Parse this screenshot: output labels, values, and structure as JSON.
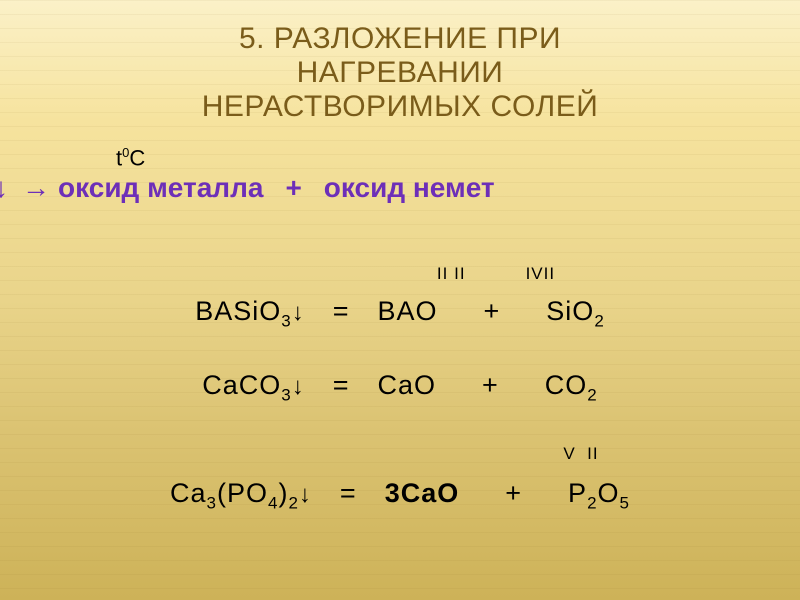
{
  "colors": {
    "title": "#7a5c1a",
    "scheme": "#6d2fb8",
    "body": "#000000",
    "bg_top": "#fbf1c8",
    "bg_bottom": "#cdb258"
  },
  "fontsize": {
    "title": 30,
    "scheme": 28,
    "equation": 27,
    "oxidation": 17,
    "temp": 22
  },
  "title": {
    "line1": "5. РАЗЛОЖЕНИЕ  ПРИ",
    "line2": "НАГРЕВАНИИ",
    "line3": "НЕРАСТВОРИМЫХ  СОЛЕЙ"
  },
  "temperature": {
    "t": "t",
    "deg": "0",
    "c": "C"
  },
  "scheme": {
    "down": "↓",
    "arrow": "→",
    "lhs": "оксид металла",
    "plus": "+",
    "rhs": "оксид немет"
  },
  "ox_a": {
    "a": "II",
    "b": "II",
    "c": "IV",
    "d": "II"
  },
  "ox_b": {
    "a": "V",
    "b": "II"
  },
  "eq1": {
    "l_base": "BASiO",
    "l_sub": "3",
    "l_arrow": "↓",
    "eq": "=",
    "m_base": "BAO",
    "p": "+",
    "r_base": "SiO",
    "r_sub": "2"
  },
  "eq2": {
    "l_base": "CaCO",
    "l_sub": "3",
    "l_arrow": "↓",
    "eq": "=",
    "m_base": "CaO",
    "p": "+",
    "r_base": "CO",
    "r_sub": "2"
  },
  "eq3": {
    "l1": "Ca",
    "l1s": "3",
    "l2a": "(PO",
    "l2s": "4",
    "l2b": ")",
    "l3s": "2",
    "l_arrow": "↓",
    "eq": "=",
    "coef": "3",
    "m_base": "CaO",
    "p": "+",
    "r1": "P",
    "r1s": "2",
    "r2": "O",
    "r2s": "5"
  }
}
